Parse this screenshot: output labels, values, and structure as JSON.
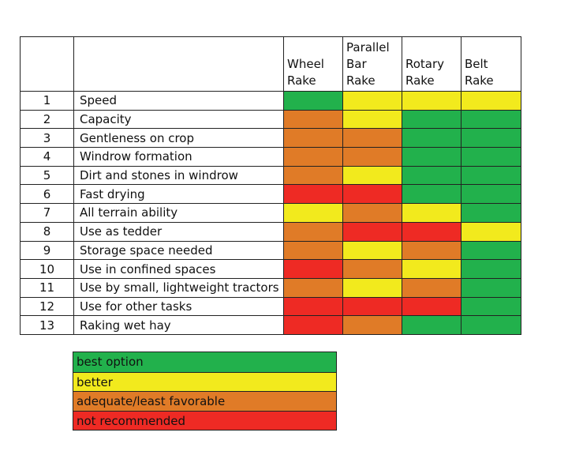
{
  "colors": {
    "best": "#22b14c",
    "better": "#f2ea1d",
    "adequate": "#e07b27",
    "not": "#ee2a24"
  },
  "columns": [
    {
      "key": "wheel",
      "lines": [
        "Wheel",
        "Rake"
      ]
    },
    {
      "key": "parallel",
      "lines": [
        "Parallel",
        "Bar",
        "Rake"
      ]
    },
    {
      "key": "rotary",
      "lines": [
        "Rotary",
        "Rake"
      ]
    },
    {
      "key": "belt",
      "lines": [
        "Belt",
        "Rake"
      ]
    }
  ],
  "rows": [
    {
      "num": "1",
      "label": "Speed",
      "ratings": [
        "best",
        "better",
        "better",
        "better"
      ]
    },
    {
      "num": "2",
      "label": "Capacity",
      "ratings": [
        "adequate",
        "better",
        "best",
        "best"
      ]
    },
    {
      "num": "3",
      "label": "Gentleness on crop",
      "ratings": [
        "adequate",
        "adequate",
        "best",
        "best"
      ]
    },
    {
      "num": "4",
      "label": "Windrow formation",
      "ratings": [
        "adequate",
        "adequate",
        "best",
        "best"
      ]
    },
    {
      "num": "5",
      "label": "Dirt and stones in windrow",
      "ratings": [
        "adequate",
        "better",
        "best",
        "best"
      ]
    },
    {
      "num": "6",
      "label": "Fast drying",
      "ratings": [
        "not",
        "not",
        "best",
        "best"
      ]
    },
    {
      "num": "7",
      "label": "All terrain ability",
      "ratings": [
        "better",
        "adequate",
        "better",
        "best"
      ]
    },
    {
      "num": "8",
      "label": "Use as tedder",
      "ratings": [
        "adequate",
        "not",
        "not",
        "better"
      ]
    },
    {
      "num": "9",
      "label": "Storage space needed",
      "ratings": [
        "adequate",
        "better",
        "adequate",
        "best"
      ]
    },
    {
      "num": "10",
      "label": "Use in confined spaces",
      "ratings": [
        "not",
        "adequate",
        "better",
        "best"
      ]
    },
    {
      "num": "11",
      "label": "Use by small, lightweight tractors",
      "ratings": [
        "adequate",
        "better",
        "adequate",
        "best"
      ]
    },
    {
      "num": "12",
      "label": "Use for other tasks",
      "ratings": [
        "not",
        "not",
        "not",
        "best"
      ]
    },
    {
      "num": "13",
      "label": "Raking wet hay",
      "ratings": [
        "not",
        "adequate",
        "best",
        "best"
      ]
    }
  ],
  "legend": [
    {
      "rating": "best",
      "label": "best option"
    },
    {
      "rating": "better",
      "label": "better"
    },
    {
      "rating": "adequate",
      "label": "adequate/least favorable"
    },
    {
      "rating": "not",
      "label": "not recommended"
    }
  ]
}
